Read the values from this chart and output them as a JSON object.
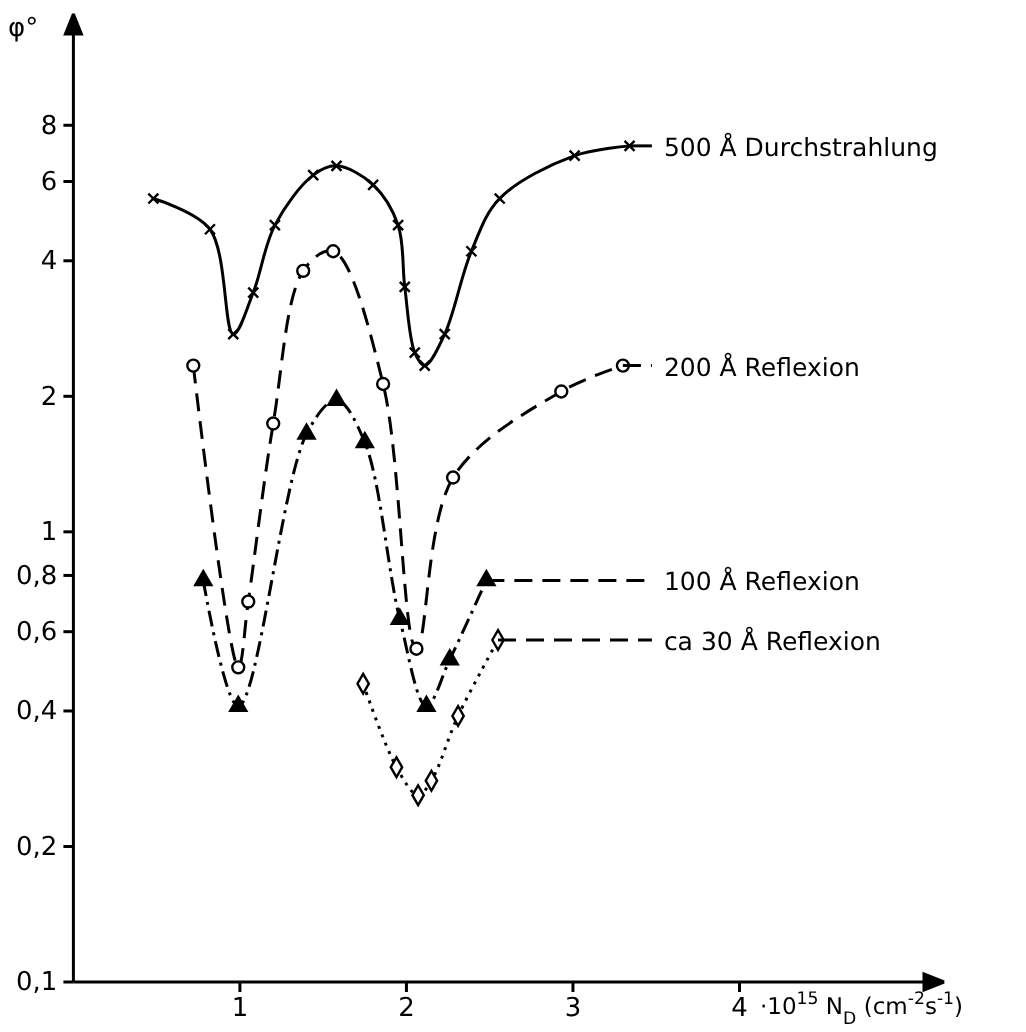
{
  "chart_data": {
    "type": "line",
    "xlabel": "·10$^{15}$ N$_{D}$ (cm$^{-2}$s$^{-1}$)",
    "ylabel": "φ°",
    "log": "y",
    "xlim": [
      0,
      5
    ],
    "ylim": [
      0.1,
      12
    ],
    "xticks": [
      1,
      2,
      3,
      4
    ],
    "yticks": [
      {
        "value": 0.1,
        "label": "0,1"
      },
      {
        "value": 0.2,
        "label": "0,2"
      },
      {
        "value": 0.4,
        "label": "0,4"
      },
      {
        "value": 0.6,
        "label": "0,6"
      },
      {
        "value": 0.8,
        "label": "0,8"
      },
      1,
      2,
      4,
      6,
      8
    ],
    "grid": false,
    "legend": "right",
    "series": [
      {
        "name": "500 Å Durchstrahlung",
        "color": "#000000",
        "line_style": "solid",
        "marker": "cross",
        "x": [
          0.48,
          0.82,
          0.96,
          1.08,
          1.21,
          1.44,
          1.58,
          1.8,
          1.95,
          1.99,
          2.05,
          2.11,
          2.23,
          2.39,
          2.56,
          3.01,
          3.34
        ],
        "values": [
          5.5,
          4.7,
          2.75,
          3.4,
          4.8,
          6.2,
          6.5,
          5.9,
          4.8,
          3.5,
          2.5,
          2.34,
          2.75,
          4.2,
          5.5,
          6.85,
          7.2
        ]
      },
      {
        "name": "200 Å Reflexion",
        "color": "#000000",
        "line_style": "dashed",
        "marker": "circle",
        "x": [
          0.72,
          0.99,
          1.05,
          1.2,
          1.38,
          1.56,
          1.86,
          2.06,
          2.28,
          2.93,
          3.3
        ],
        "values": [
          2.34,
          0.5,
          0.7,
          1.74,
          3.8,
          4.2,
          2.13,
          0.55,
          1.32,
          2.05,
          2.34
        ]
      },
      {
        "name": "100 Å Reflexion",
        "color": "#000000",
        "line_style": "dashdot",
        "marker": "triangle",
        "x": [
          0.78,
          0.99,
          1.4,
          1.58,
          1.75,
          1.96,
          2.12,
          2.26,
          2.48
        ],
        "values": [
          0.78,
          0.41,
          1.65,
          1.96,
          1.58,
          0.64,
          0.41,
          0.52,
          0.78
        ]
      },
      {
        "name": "ca 30 Å Reflexion",
        "color": "#000000",
        "line_style": "dotted",
        "marker": "diamond",
        "x": [
          1.74,
          1.94,
          2.07,
          2.15,
          2.31,
          2.55
        ],
        "values": [
          0.46,
          0.3,
          0.26,
          0.28,
          0.39,
          0.575
        ]
      }
    ]
  }
}
